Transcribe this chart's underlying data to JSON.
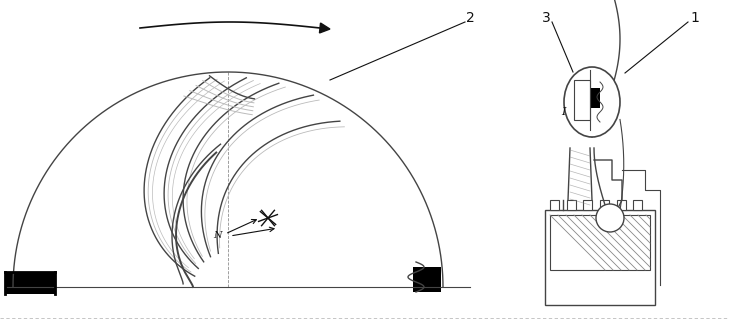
{
  "fig_width": 7.29,
  "fig_height": 3.27,
  "dpi": 100,
  "label_1": "1",
  "label_2": "2",
  "label_3": "3",
  "label_N": "N",
  "label_I": "I",
  "lc": "#444444",
  "dc": "#111111",
  "gray": "#888888",
  "lgray": "#bbbbbb"
}
